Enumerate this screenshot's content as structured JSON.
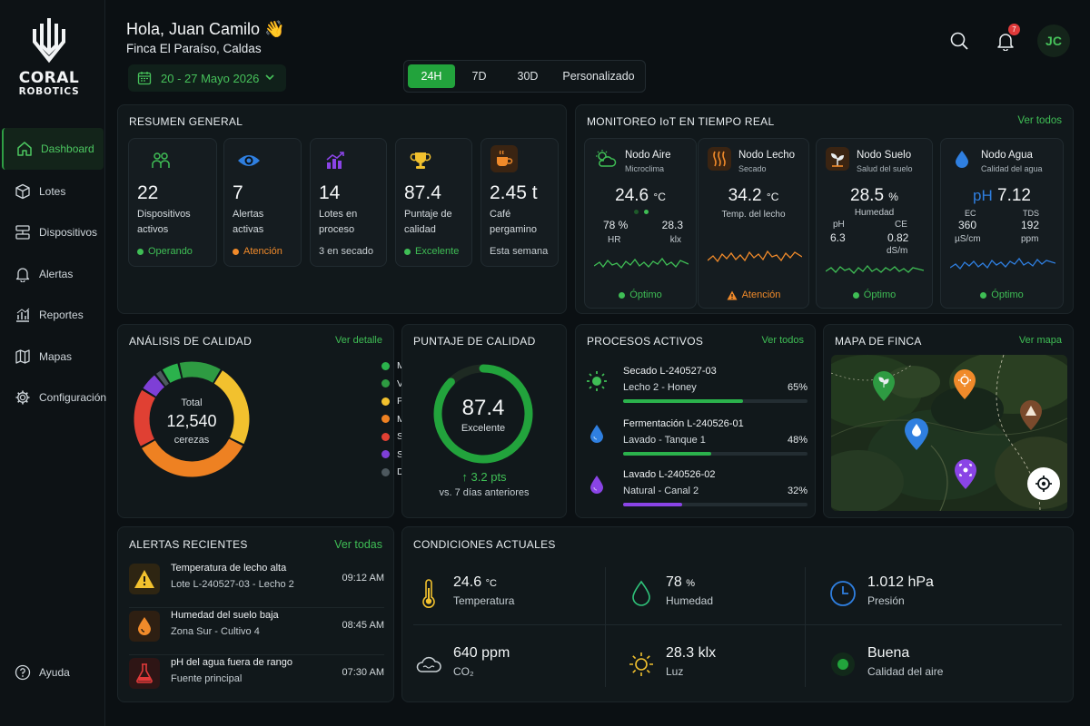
{
  "brand": {
    "line1": "CORAL",
    "line2": "ROBOTICS"
  },
  "sidebar": {
    "items": [
      {
        "label": "Dashboard",
        "icon": "home-icon"
      },
      {
        "label": "Lotes",
        "icon": "cube-icon"
      },
      {
        "label": "Dispositivos",
        "icon": "devices-icon"
      },
      {
        "label": "Alertas",
        "icon": "bell-icon"
      },
      {
        "label": "Reportes",
        "icon": "chart-icon"
      },
      {
        "label": "Mapas",
        "icon": "map-icon"
      },
      {
        "label": "Configuración",
        "icon": "gear-icon"
      }
    ],
    "help": "Ayuda"
  },
  "header": {
    "greeting": "Hola, Juan Camilo 👋",
    "farm": "Finca El Paraíso, Caldas",
    "date_range": "20 - 27 Mayo 2026",
    "periods": [
      "24H",
      "7D",
      "30D",
      "Personalizado"
    ],
    "active_period": "24H",
    "notifications": "7",
    "avatar": "JC"
  },
  "colors": {
    "accent": "#22a33c",
    "green": "#3fbe55",
    "orange": "#f08a2a",
    "blue": "#2f7fe0",
    "purple": "#8a44e6",
    "red": "#e03a3a",
    "yellow": "#f2c12e"
  },
  "summary": {
    "title": "RESUMEN GENERAL",
    "cards": [
      {
        "value": "22",
        "label": "Dispositivos activos",
        "status": "Operando",
        "status_color": "#3fbe55",
        "icon": "users-icon"
      },
      {
        "value": "7",
        "label": "Alertas activas",
        "status": "Atención",
        "status_color": "#f08a2a",
        "icon": "eye-icon"
      },
      {
        "value": "14",
        "label": "Lotes en proceso",
        "status": "3 en secado",
        "status_color": "",
        "icon": "growth-chart-icon"
      },
      {
        "value": "87.4",
        "label": "Puntaje de calidad",
        "status": "Excelente",
        "status_color": "#3fbe55",
        "icon": "trophy-icon"
      },
      {
        "value": "2.45 t",
        "label": "Café pergamino",
        "status": "Esta semana",
        "status_color": "",
        "icon": "coffee-cup-icon"
      }
    ]
  },
  "iot": {
    "title": "MONITOREO IoT EN TIEMPO REAL",
    "link": "Ver todos",
    "nodes": [
      {
        "name": "Nodo Aire",
        "sub": "Microclima",
        "main": "24.6",
        "unit": "°C",
        "m1v": "78 %",
        "m1l": "HR",
        "m2v": "28.3",
        "m2l": "klx",
        "status": "Óptimo",
        "color": "#3fbe55",
        "icon": "weather-icon"
      },
      {
        "name": "Nodo Lecho",
        "sub": "Secado",
        "main": "34.2",
        "unit": "°C",
        "caption": "Temp. del lecho",
        "status": "Atención",
        "color": "#f08a2a",
        "icon": "heat-waves-icon"
      },
      {
        "name": "Nodo Suelo",
        "sub": "Salud del suelo",
        "main": "28.5",
        "unit": "%",
        "caption": "Humedad",
        "m1l": "pH",
        "m1v": "6.3",
        "m2l": "CE",
        "m2v": "0.82",
        "m2u": "dS/m",
        "status": "Óptimo",
        "color": "#3fbe55",
        "icon": "sprout-icon"
      },
      {
        "name": "Nodo Agua",
        "sub": "Calidad del agua",
        "prefix": "pH",
        "main": "7.12",
        "m1l": "EC",
        "m1v": "360",
        "m1u": "µS/cm",
        "m2l": "TDS",
        "m2v": "192",
        "m2u": "ppm",
        "status": "Óptimo",
        "color": "#3fbe55",
        "icon": "water-drop-icon"
      }
    ]
  },
  "quality": {
    "title": "ANÁLISIS DE CALIDAD",
    "link": "Ver detalle",
    "total_label": "Total",
    "total": "12,540",
    "unit": "cerezas",
    "segments": [
      {
        "name": "Muy Verde",
        "pct": "5.1%",
        "value": 5.1,
        "color": "#2bb24c"
      },
      {
        "name": "Verde",
        "pct": "12.3%",
        "value": 12.3,
        "color": "#2e9b42"
      },
      {
        "name": "Pintón",
        "pct": "23.7%",
        "value": 23.7,
        "color": "#f2c12e"
      },
      {
        "name": "Maduro",
        "pct": "34.6%",
        "value": 34.6,
        "color": "#ee8122"
      },
      {
        "name": "Sobremaduro",
        "pct": "16.8%",
        "value": 16.8,
        "color": "#e04033"
      },
      {
        "name": "Seco",
        "pct": "5.4%",
        "value": 5.4,
        "color": "#7e3fd6"
      },
      {
        "name": "Defectuoso",
        "pct": "2.1%",
        "value": 2.1,
        "color": "#4d585e"
      }
    ]
  },
  "score": {
    "title": "PUNTAJE DE CALIDAD",
    "value": "87.4",
    "score": 87.4,
    "max": 100,
    "label": "Excelente",
    "delta": "↑ 3.2 pts",
    "compare": "vs. 7 días anteriores"
  },
  "processes": {
    "title": "PROCESOS ACTIVOS",
    "link": "Ver todos",
    "items": [
      {
        "name": "Secado L-240527-03",
        "sub": "Lecho 2 - Honey",
        "pct": "65%",
        "value": 65,
        "color": "#2bb24c",
        "icon": "sun-icon"
      },
      {
        "name": "Fermentación L-240526-01",
        "sub": "Lavado - Tanque 1",
        "pct": "48%",
        "value": 48,
        "color": "#2bb24c",
        "icon": "water-drop-icon"
      },
      {
        "name": "Lavado L-240526-02",
        "sub": "Natural - Canal 2",
        "pct": "32%",
        "value": 32,
        "color": "#8a44e6",
        "icon": "purple-drop-icon"
      }
    ]
  },
  "map": {
    "title": "MAPA DE FINCA",
    "link": "Ver mapa"
  },
  "alerts": {
    "title": "ALERTAS RECIENTES",
    "link": "Ver todas",
    "items": [
      {
        "title": "Temperatura de lecho alta",
        "sub": "Lote L-240527-03 - Lecho 2",
        "time": "09:12 AM",
        "icon": "warning-icon"
      },
      {
        "title": "Humedad del suelo baja",
        "sub": "Zona Sur - Cultivo 4",
        "time": "08:45 AM",
        "icon": "drop-icon"
      },
      {
        "title": "pH del agua fuera de rango",
        "sub": "Fuente principal",
        "time": "07:30 AM",
        "icon": "flask-icon"
      }
    ]
  },
  "conditions": {
    "title": "CONDICIONES ACTUALES",
    "items": [
      {
        "value": "24.6",
        "unit": "°C",
        "label": "Temperatura",
        "icon": "thermometer-icon"
      },
      {
        "value": "78",
        "unit": "%",
        "label": "Humedad",
        "icon": "humidity-icon"
      },
      {
        "value": "1.012 hPa",
        "unit": "",
        "label": "Presión",
        "icon": "pressure-clock-icon"
      },
      {
        "value": "640 ppm",
        "unit": "",
        "label": "CO₂",
        "icon": "co2-cloud-icon"
      },
      {
        "value": "28.3 klx",
        "unit": "",
        "label": "Luz",
        "icon": "light-sun-icon"
      },
      {
        "value": "Buena",
        "unit": "",
        "label": "Calidad del aire",
        "icon": "air-quality-icon"
      }
    ]
  }
}
